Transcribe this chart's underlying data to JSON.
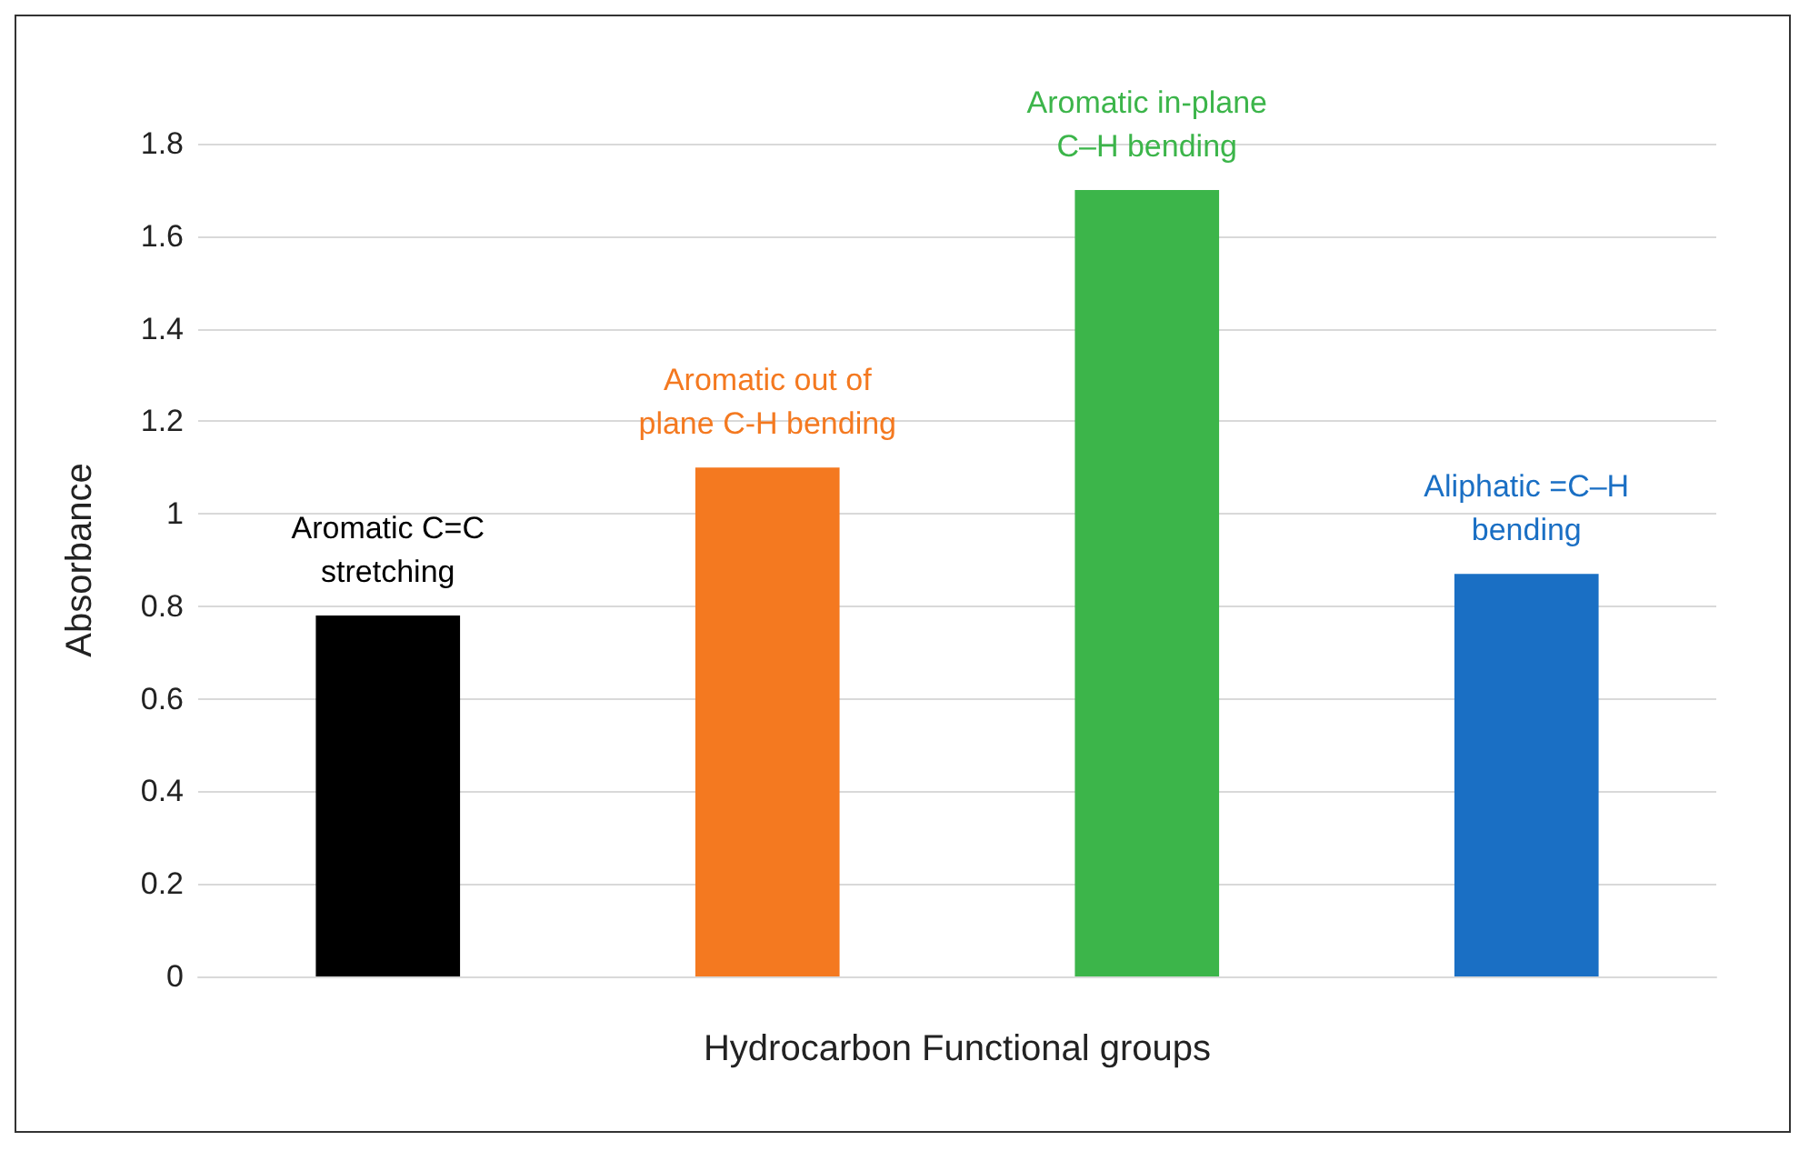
{
  "chart_data": {
    "type": "bar",
    "xlabel": "Hydrocarbon Functional groups",
    "ylabel": "Absorbance",
    "categories": [
      "Aromatic C=C\nstretching",
      "Aromatic out of\nplane C-H bending",
      "Aromatic in-plane\nC–H bending",
      "Aliphatic =C–H\nbending"
    ],
    "values": [
      0.78,
      1.1,
      1.7,
      0.87
    ],
    "colors": [
      "#000000",
      "#f47920",
      "#3cb54a",
      "#1a6fc4"
    ],
    "ylim": [
      0,
      1.8
    ],
    "yticks": [
      0,
      0.2,
      0.4,
      0.6,
      0.8,
      1,
      1.2,
      1.4,
      1.6,
      1.8
    ],
    "grid": "y"
  }
}
